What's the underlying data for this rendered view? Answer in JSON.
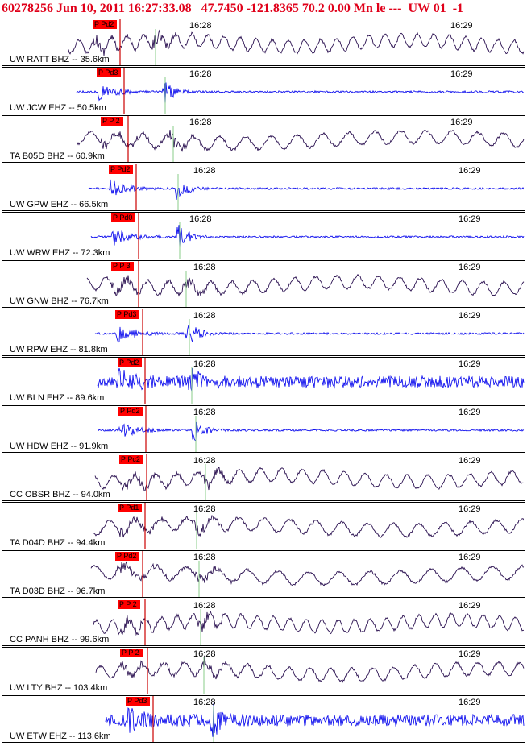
{
  "header": {
    "event_id": "60278256",
    "datetime": "Jun 10, 2011 16:27:33.08",
    "lat": "47.7450",
    "lon": "-121.8365",
    "depth": "70.2",
    "extra": "0.00 Mn le ---",
    "network": "UW 01",
    "tail": "-1"
  },
  "time_ticks": [
    "16:28",
    "16:29"
  ],
  "colors": {
    "header": "#e0001a",
    "bhz_trace": "#2a1050",
    "ehz_trace": "#1111ee",
    "pick_box": "#ff0000",
    "p_line": "#cc0000",
    "s_line": "#88cc88"
  },
  "traces": [
    {
      "label": "UW RATT BHZ -- 35.6km",
      "pick": "P Pd2",
      "type": "BHZ"
    },
    {
      "label": "UW JCW EHZ -- 50.5km",
      "pick": "P Pd3",
      "type": "EHZ"
    },
    {
      "label": "TA B05D BHZ -- 60.9km",
      "pick": "P P 2",
      "type": "BHZ"
    },
    {
      "label": "UW GPW EHZ -- 66.5km",
      "pick": "P Pd2",
      "type": "EHZ"
    },
    {
      "label": "UW WRW EHZ -- 72.3km",
      "pick": "P Pd0",
      "type": "EHZ"
    },
    {
      "label": "UW GNW BHZ -- 76.7km",
      "pick": "P P 3",
      "type": "BHZ"
    },
    {
      "label": "UW RPW EHZ -- 81.8km",
      "pick": "P Pd3",
      "type": "EHZ"
    },
    {
      "label": "UW BLN EHZ -- 89.6km",
      "pick": "P Pd2",
      "type": "EHZ"
    },
    {
      "label": "UW HDW EHZ -- 91.9km",
      "pick": "P Pd2",
      "type": "EHZ"
    },
    {
      "label": "CC OBSR BHZ -- 94.0km",
      "pick": "P Pc2",
      "type": "BHZ"
    },
    {
      "label": "TA D04D BHZ -- 94.4km",
      "pick": "P Pd1",
      "type": "BHZ"
    },
    {
      "label": "TA D03D BHZ -- 96.7km",
      "pick": "P Pd2",
      "type": "BHZ"
    },
    {
      "label": "CC PANH BHZ -- 99.6km",
      "pick": "P P 2",
      "type": "BHZ"
    },
    {
      "label": "UW LTY BHZ -- 103.4km",
      "pick": "P P 2",
      "type": "BHZ"
    },
    {
      "label": "UW ETW EHZ -- 113.6km",
      "pick": "P Pd3",
      "type": "EHZ"
    }
  ]
}
